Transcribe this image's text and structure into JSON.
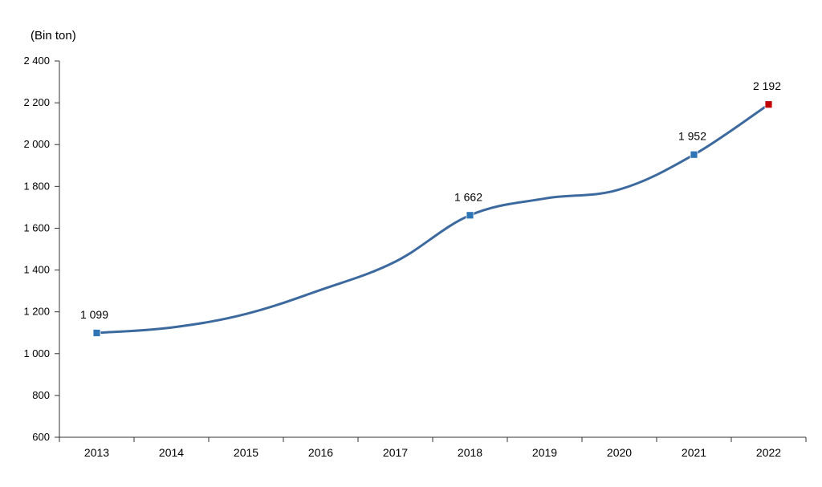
{
  "chart_data": {
    "type": "line",
    "ylabel": "(Bin ton)",
    "categories": [
      "2013",
      "2014",
      "2015",
      "2016",
      "2017",
      "2018",
      "2019",
      "2020",
      "2021",
      "2022"
    ],
    "series": [
      {
        "values": [
          1099,
          1125,
          1190,
          1305,
          1440,
          1662,
          1742,
          1785,
          1952,
          2192
        ]
      }
    ],
    "data_labels": [
      {
        "category": "2013",
        "text": "1 099"
      },
      {
        "category": "2018",
        "text": "1 662"
      },
      {
        "category": "2021",
        "text": "1 952"
      },
      {
        "category": "2022",
        "text": "2 192"
      }
    ],
    "marked_points": [
      "2013",
      "2018",
      "2021",
      "2022"
    ],
    "highlight_point": "2022",
    "ylim": [
      600,
      2400
    ],
    "yticks": [
      600,
      800,
      1000,
      1200,
      1400,
      1600,
      1800,
      2000,
      2200,
      2400
    ],
    "ytick_labels": [
      "600",
      "800",
      "1 000",
      "1 200",
      "1 400",
      "1 600",
      "1 800",
      "2 000",
      "2 200",
      "2 400"
    ],
    "grid": false,
    "legend": "none",
    "colors": {
      "line": "#3d6a9e",
      "marker": "#2e75b6",
      "highlight_marker": "#c00000",
      "axis": "#333333"
    }
  }
}
